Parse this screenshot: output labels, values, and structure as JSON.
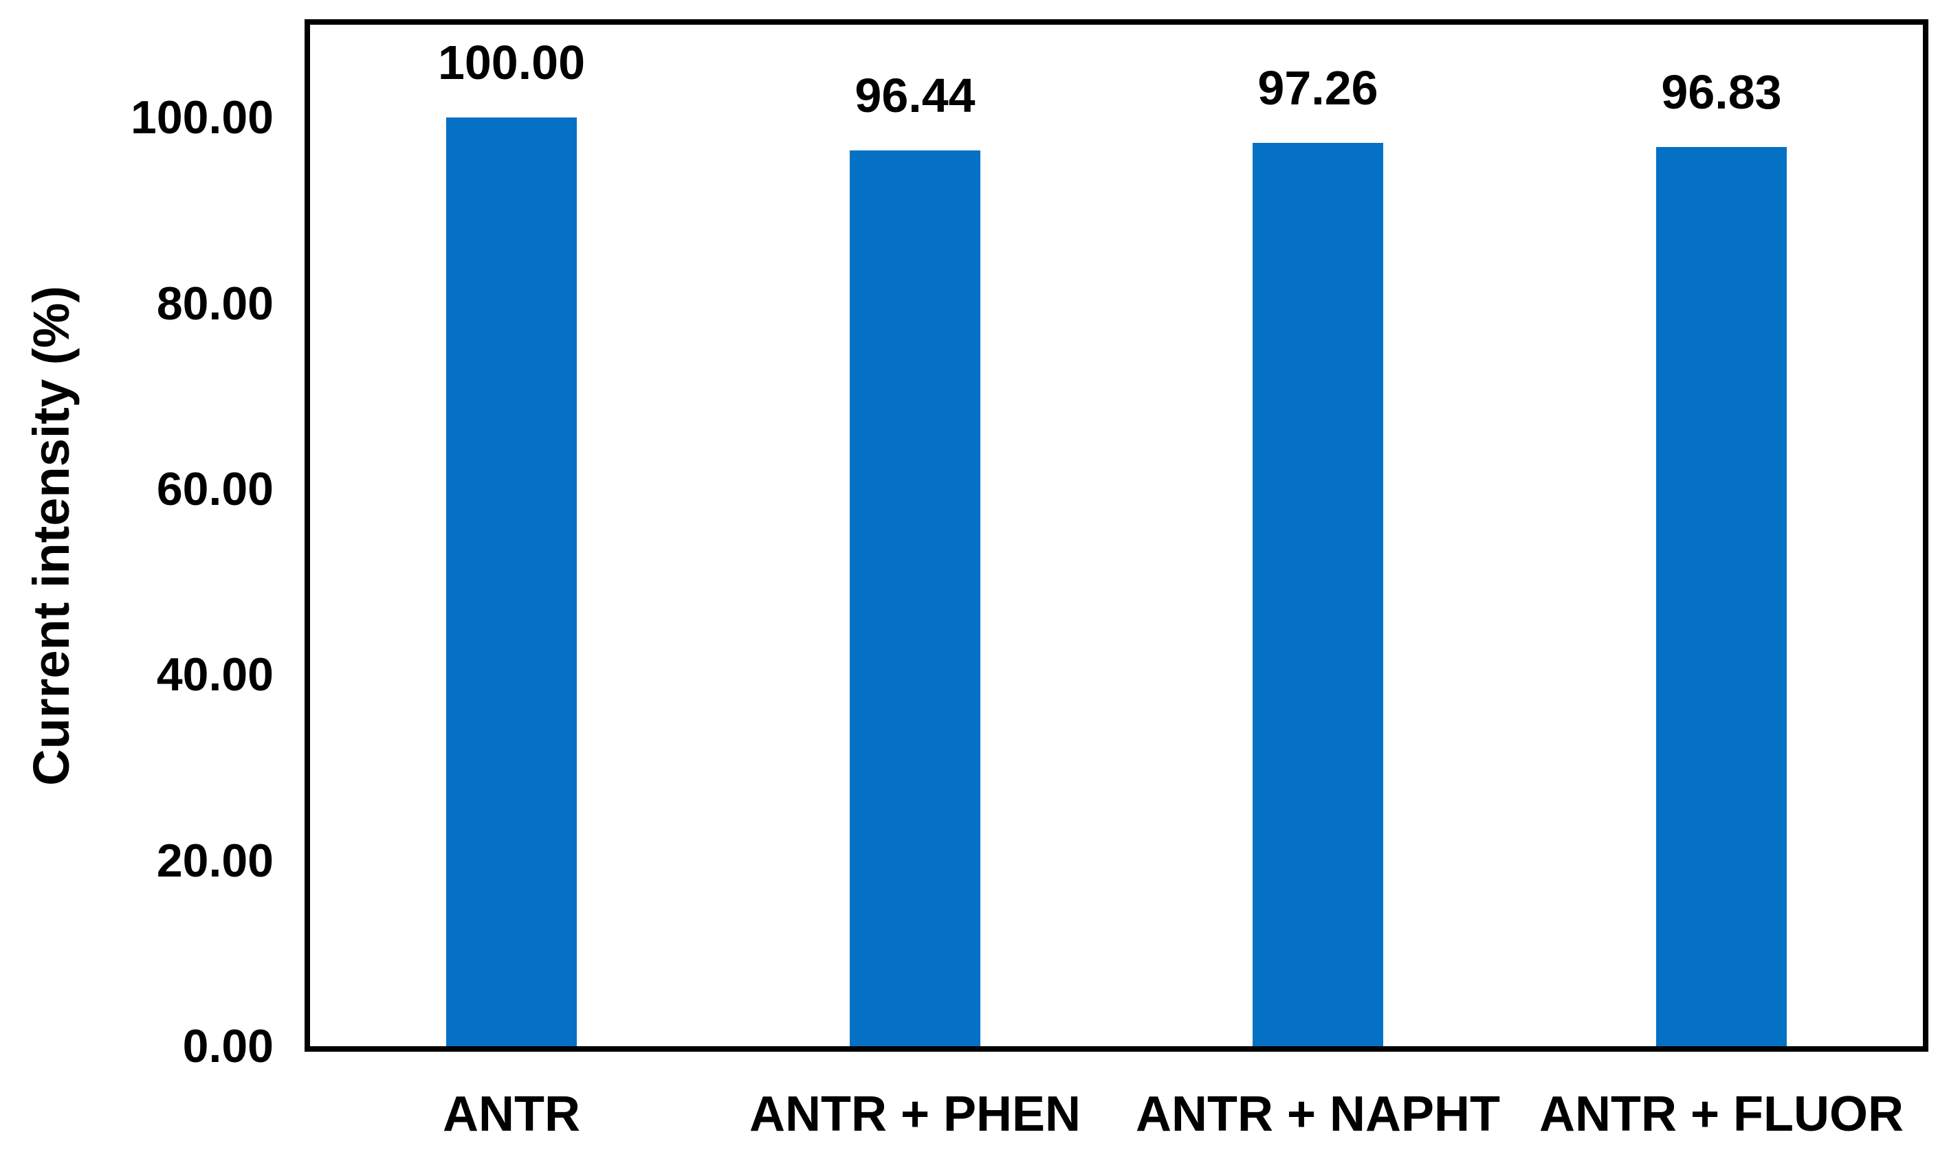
{
  "chart_data": {
    "type": "bar",
    "title": "",
    "xlabel": "",
    "ylabel": "Current intensity (%)",
    "categories": [
      "ANTR",
      "ANTR + PHEN",
      "ANTR + NAPHT",
      "ANTR + FLUOR"
    ],
    "series": [
      {
        "name": "Current intensity",
        "values": [
          100.0,
          96.44,
          97.26,
          96.83
        ],
        "value_labels": [
          "100.00",
          "96.44",
          "97.26",
          "96.83"
        ]
      }
    ],
    "ylim": [
      0,
      110
    ],
    "ytick_values": [
      0,
      20,
      40,
      60,
      80,
      100
    ],
    "ytick_labels": [
      "0.00",
      "20.00",
      "40.00",
      "60.00",
      "80.00",
      "100.00"
    ],
    "grid": false,
    "legend_position": "none",
    "data_labels_shown": true,
    "colors": {
      "bar_fill": "#0571c5",
      "plot_border": "#000000",
      "text": "#000000",
      "background": "#ffffff"
    }
  }
}
